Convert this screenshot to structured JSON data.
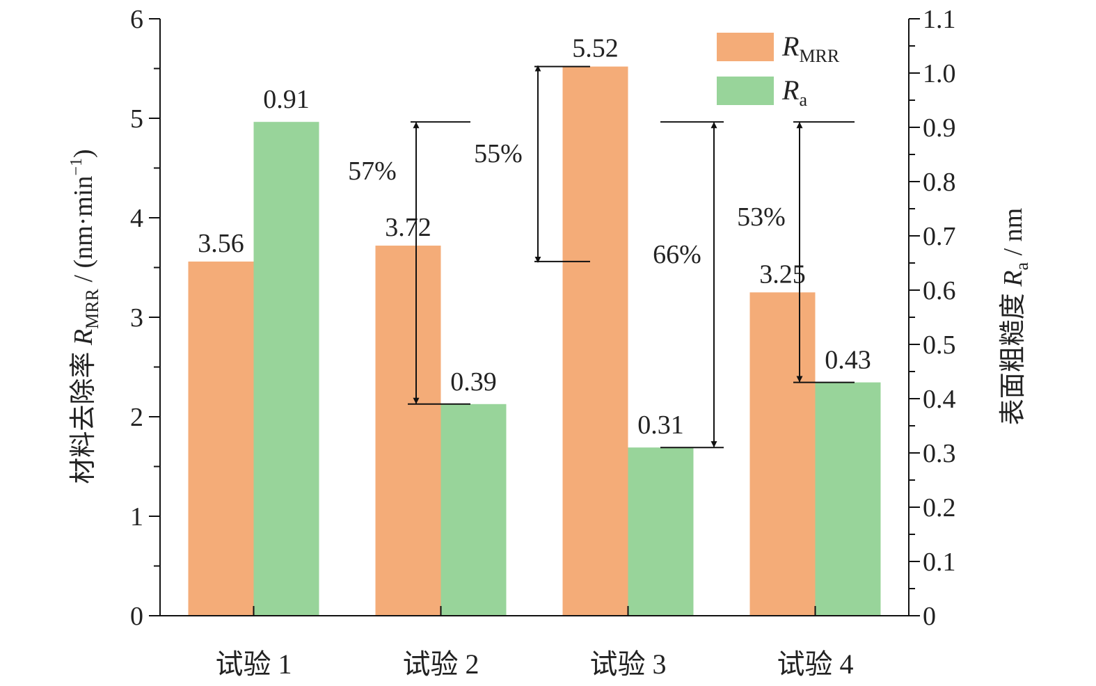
{
  "chart_data": {
    "type": "bar",
    "categories": [
      "试验 1",
      "试验 2",
      "试验 3",
      "试验 4"
    ],
    "series": [
      {
        "name": "R_MRR",
        "legend_main": "R",
        "legend_sub": "MRR",
        "axis": "left",
        "values": [
          3.56,
          3.72,
          5.52,
          3.25
        ],
        "labels": [
          "3.56",
          "3.72",
          "5.52",
          "3.25"
        ],
        "color": "#f4ac78"
      },
      {
        "name": "R_a",
        "legend_main": "R",
        "legend_sub": "a",
        "axis": "right",
        "values": [
          0.91,
          0.39,
          0.31,
          0.43
        ],
        "labels": [
          "0.91",
          "0.39",
          "0.31",
          "0.43"
        ],
        "color": "#98d49a"
      }
    ],
    "y_left": {
      "title_pre": "材料去除率 ",
      "title_italic": "R",
      "title_sub": "MRR",
      "title_post": " / (nm·min",
      "title_sup": "−1",
      "title_end": ")",
      "ylim": [
        0,
        6
      ],
      "ticks": [
        0,
        1,
        2,
        3,
        4,
        5,
        6
      ],
      "tick_labels": [
        "0",
        "1",
        "2",
        "3",
        "4",
        "5",
        "6"
      ]
    },
    "y_right": {
      "title_pre": "表面粗糙度 ",
      "title_italic": "R",
      "title_sub": "a",
      "title_post": " / nm",
      "ylim": [
        0,
        1.1
      ],
      "ticks": [
        0,
        0.1,
        0.2,
        0.3,
        0.4,
        0.5,
        0.6,
        0.7,
        0.8,
        0.9,
        1.0,
        1.1
      ],
      "tick_labels": [
        "0",
        "0.1",
        "0.2",
        "0.3",
        "0.4",
        "0.5",
        "0.6",
        "0.7",
        "0.8",
        "0.9",
        "1.0",
        "1.1"
      ]
    },
    "annotations": [
      {
        "label": "57%",
        "series": "R_a",
        "from_value": 0.91,
        "to_value": 0.39,
        "near_category": 1
      },
      {
        "label": "55%",
        "series": "R_MRR",
        "from_value": 3.56,
        "to_value": 5.52,
        "near_category": 2
      },
      {
        "label": "66%",
        "series": "R_a",
        "from_value": 0.91,
        "to_value": 0.31,
        "near_category": 2
      },
      {
        "label": "53%",
        "series": "R_a",
        "from_value": 0.91,
        "to_value": 0.43,
        "near_category": 3
      }
    ],
    "legend_position": "top-right",
    "grid": false
  }
}
